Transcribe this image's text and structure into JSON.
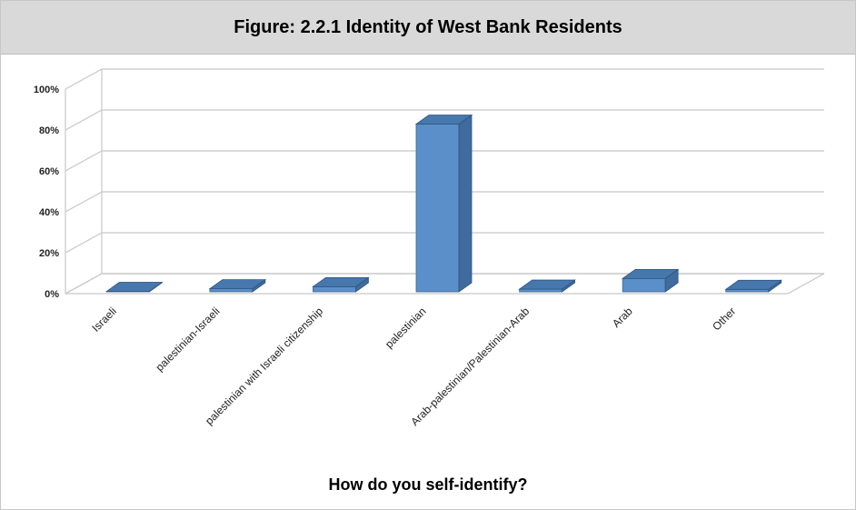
{
  "header": {
    "title": "Figure: 2.2.1 Identity of West Bank Residents"
  },
  "colors": {
    "bar_front": "#5b8fc9",
    "bar_side": "#3f6b9e",
    "bar_top": "#4677ad",
    "grid": "#c7c7c7",
    "header_bg": "#d9d9d9"
  },
  "chart_data": {
    "type": "bar",
    "title": "Figure: 2.2.1 Identity of West Bank Residents",
    "xlabel": "How do you self-identify?",
    "ylabel": "",
    "ylim": [
      0,
      100
    ],
    "yticks": [
      "0%",
      "20%",
      "40%",
      "60%",
      "80%",
      "100%"
    ],
    "grid": true,
    "legend": "none",
    "categories": [
      "Israeli",
      "palestinian-Israeli",
      "palestinian with Israeli citizenship",
      "palestinian",
      "Arab-palestinian/Palestinian-Arab",
      "Arab",
      "Other"
    ],
    "values": [
      0.2,
      1.5,
      2.5,
      82,
      1.3,
      6.5,
      1.2
    ]
  }
}
